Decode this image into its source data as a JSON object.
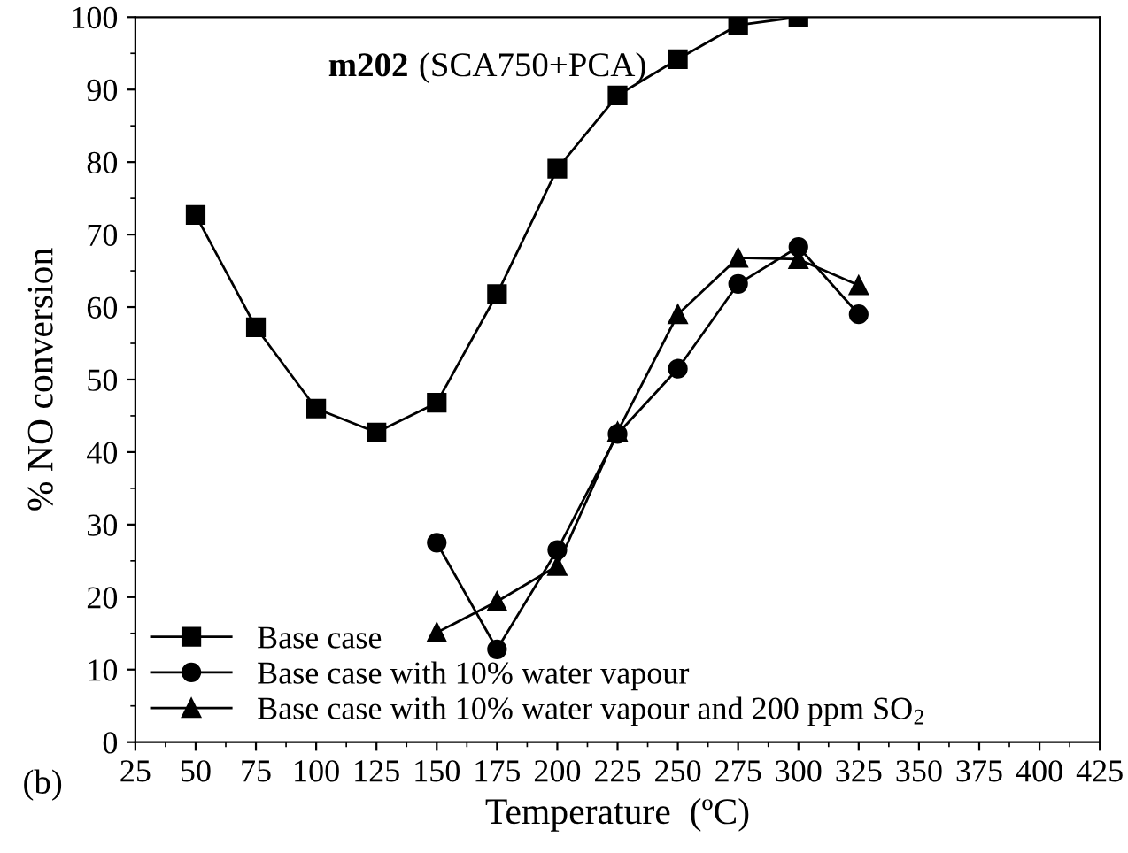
{
  "chart_data": {
    "type": "line",
    "xlabel": "Temperature  (ºC)",
    "ylabel": "% NO conversion",
    "annotations": [
      "m202 (SCA750+PCA)",
      "(b)"
    ],
    "xlim": [
      25,
      425
    ],
    "xticks": [
      25,
      50,
      75,
      100,
      125,
      150,
      175,
      200,
      225,
      250,
      275,
      300,
      325,
      350,
      375,
      400,
      425
    ],
    "ylim": [
      0,
      100
    ],
    "yticks": [
      0,
      10,
      20,
      30,
      40,
      50,
      60,
      70,
      80,
      90,
      100
    ],
    "grid": false,
    "legend": "bottom left",
    "line_style": "solid",
    "series": [
      {
        "name": "Base case",
        "color": "#000000",
        "marker": "square",
        "x": [
          50,
          75,
          100,
          125,
          150,
          175,
          200,
          225,
          250,
          275,
          300
        ],
        "values": [
          72.7,
          57.2,
          46,
          42.7,
          46.8,
          61.8,
          79.1,
          89.2,
          94.2,
          98.9,
          100
        ]
      },
      {
        "name": "Base case with 10% water vapour",
        "color": "#000000",
        "marker": "circle",
        "x": [
          150,
          175,
          200,
          225,
          250,
          275,
          300,
          325
        ],
        "values": [
          27.5,
          12.8,
          26.5,
          42.5,
          51.5,
          63.2,
          68.3,
          59
        ]
      },
      {
        "name": "Base case with 10% water vapour and 200 ppm SO$_{2}$",
        "color": "#000000",
        "marker": "triangle",
        "x": [
          150,
          175,
          200,
          225,
          250,
          275,
          300,
          325
        ],
        "values": [
          15.1,
          19.4,
          24.3,
          42.8,
          59,
          66.8,
          66.6,
          63
        ]
      }
    ]
  }
}
